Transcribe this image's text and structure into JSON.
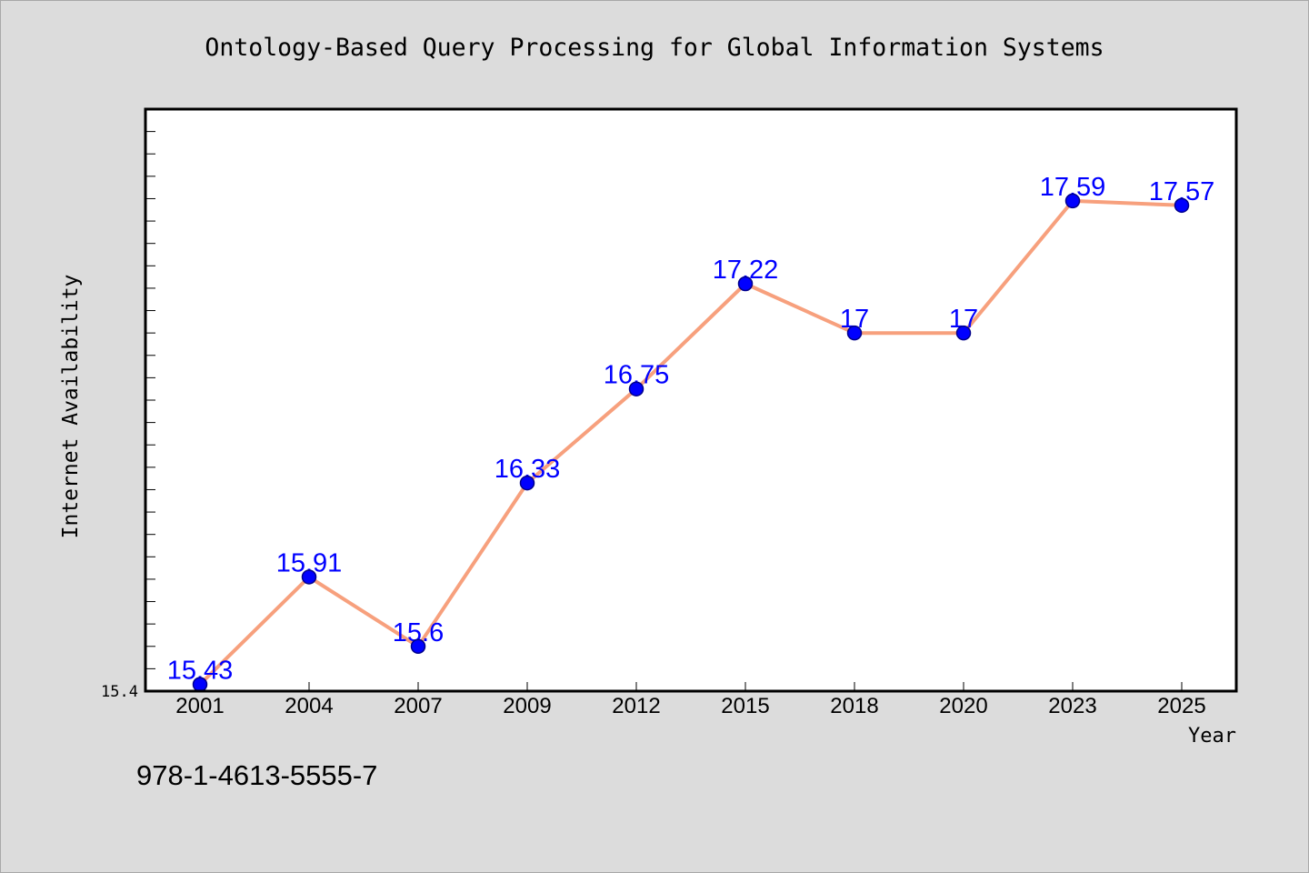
{
  "footer_text": "978-1-4613-5555-7",
  "colors": {
    "page_background": "#dcdcdc",
    "plot_background": "#ffffff",
    "frame": "#000000",
    "line": "#f7a07d",
    "marker_fill": "#0000ff",
    "marker_edge": "#00008b",
    "data_label": "#0000ff"
  },
  "chart_data": {
    "type": "line",
    "title": "Ontology-Based Query Processing for Global Information Systems",
    "xlabel": "Year",
    "ylabel": "Internet Availability",
    "categories": [
      "2001",
      "2004",
      "2007",
      "2009",
      "2012",
      "2015",
      "2018",
      "2020",
      "2023",
      "2025"
    ],
    "series": [
      {
        "values": [
          15.43,
          15.91,
          15.6,
          16.33,
          16.75,
          17.22,
          17,
          17,
          17.59,
          17.57
        ],
        "data_labels": true
      }
    ],
    "ylim": [
      15.4,
      18.0
    ],
    "ytick_step": 0.1,
    "ytick_labels": [
      "15.4"
    ],
    "grid": false,
    "legend": false
  }
}
